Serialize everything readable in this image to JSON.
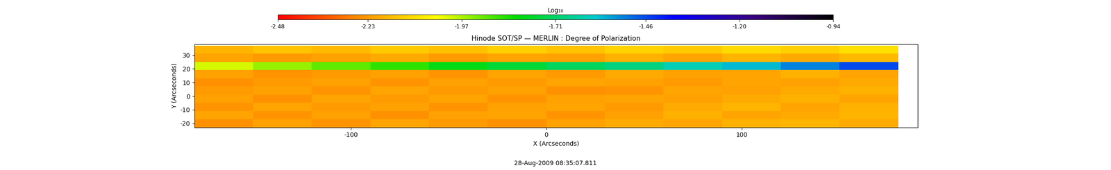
{
  "chart_data": {
    "type": "heatmap",
    "title": "Hinode SOT/SP — MERLIN : Degree of Polarization",
    "x_label": "X (Arcseconds)",
    "y_label": "Y (Arcseconds)",
    "footer": "28-Aug-2009 08:35:07.811",
    "x": [
      -165,
      -135,
      -105,
      -75,
      -45,
      -15,
      15,
      45,
      75,
      105,
      135,
      165
    ],
    "y": [
      -20,
      -14,
      -8,
      -2,
      4,
      10,
      16,
      22,
      28,
      34
    ],
    "cells": [
      [
        -2.25,
        -2.22,
        -2.24,
        -2.21,
        -2.23,
        -2.25,
        -2.22,
        -2.2,
        -2.21,
        -2.19,
        -2.18,
        -2.2
      ],
      [
        -2.21,
        -2.24,
        -2.22,
        -2.25,
        -2.22,
        -2.21,
        -2.24,
        -2.22,
        -2.19,
        -2.21,
        -2.2,
        -2.18
      ],
      [
        -2.24,
        -2.21,
        -2.23,
        -2.22,
        -2.24,
        -2.22,
        -2.21,
        -2.23,
        -2.2,
        -2.18,
        -2.21,
        -2.19
      ],
      [
        -2.22,
        -2.25,
        -2.21,
        -2.23,
        -2.21,
        -2.24,
        -2.22,
        -2.21,
        -2.22,
        -2.2,
        -2.19,
        -2.21
      ],
      [
        -2.23,
        -2.22,
        -2.24,
        -2.21,
        -2.23,
        -2.22,
        -2.25,
        -2.24,
        -2.21,
        -2.22,
        -2.2,
        -2.19
      ],
      [
        -2.25,
        -2.23,
        -2.22,
        -2.24,
        -2.22,
        -2.23,
        -2.21,
        -2.22,
        -2.23,
        -2.21,
        -2.22,
        -2.2
      ],
      [
        -2.22,
        -2.24,
        -2.23,
        -2.22,
        -2.24,
        -2.21,
        -2.23,
        -2.2,
        -2.22,
        -2.21,
        -2.19,
        -2.21
      ],
      [
        -2.0,
        -1.95,
        -1.9,
        -1.86,
        -1.8,
        -1.76,
        -1.72,
        -1.68,
        -1.62,
        -1.58,
        -1.52,
        -1.46
      ],
      [
        -2.21,
        -2.23,
        -2.22,
        -2.2,
        -2.23,
        -2.21,
        -2.22,
        -2.19,
        -2.21,
        -2.18,
        -2.2,
        -2.17
      ],
      [
        -2.18,
        -2.15,
        -2.17,
        -2.14,
        -2.16,
        -2.13,
        -2.15,
        -2.12,
        -2.14,
        -2.11,
        -2.13,
        -2.1
      ]
    ],
    "xlim": [
      -180,
      190
    ],
    "ylim": [
      -23,
      38
    ],
    "xticks": [
      -100,
      0,
      100
    ],
    "yticks": [
      -20,
      -10,
      0,
      10,
      20,
      30
    ],
    "colorbar": {
      "label": "Log₁₀",
      "range": [
        -2.48,
        -0.94
      ],
      "ticks": [
        -2.48,
        -2.23,
        -1.97,
        -1.71,
        -1.46,
        {
          "value": -1.2,
          "label": "-1.20"
        },
        -0.94
      ]
    }
  }
}
